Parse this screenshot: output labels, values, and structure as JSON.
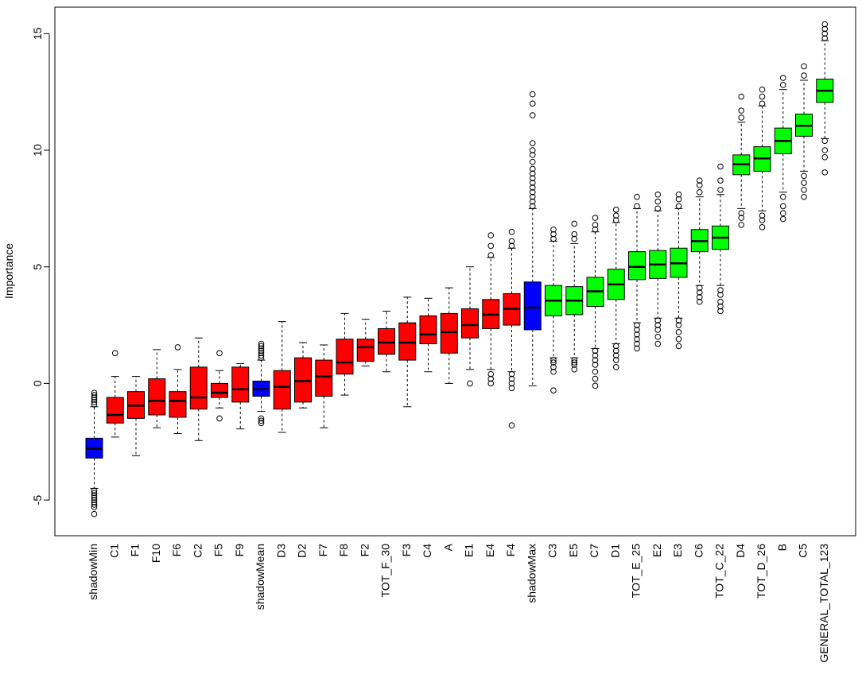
{
  "chart_data": {
    "type": "boxplot",
    "title": "",
    "xlabel": "",
    "ylabel": "Importance",
    "ylim": [
      -6.3,
      15.8
    ],
    "yticks": [
      -5,
      0,
      5,
      10,
      15
    ],
    "ytick_labels": [
      "-5",
      "0",
      "5",
      "10",
      "15"
    ],
    "grid": false,
    "legend": "none",
    "colors": {
      "shadow": "#0000FF",
      "rejected": "#FF0000",
      "confirmed": "#00FF00"
    },
    "categories": [
      "shadowMin",
      "C1",
      "F1",
      "F10",
      "F6",
      "C2",
      "F5",
      "F9",
      "shadowMean",
      "D3",
      "D2",
      "F7",
      "F8",
      "F2",
      "TOT_F_30",
      "F3",
      "C4",
      "A",
      "E1",
      "E4",
      "F4",
      "shadowMax",
      "C3",
      "E5",
      "C7",
      "D1",
      "TOT_E_25",
      "E2",
      "E3",
      "C6",
      "TOT_C_22",
      "D4",
      "TOT_D_26",
      "B",
      "C5",
      "GENERAL_TOTAL_123"
    ],
    "x_labels_shown": [
      "shadowMin",
      "C1",
      "F1",
      "F10",
      "F6",
      "C2",
      "F5",
      "F9",
      "shadowMean",
      "D3",
      "D2",
      "F7",
      "F8",
      "F2",
      "TOT_F_30",
      "F3",
      "C4",
      "A",
      "E1",
      "E4",
      "F4",
      "shadowMax",
      "C3",
      "E5",
      "C7",
      "D1",
      "TOT_E_25",
      "E2",
      "E3",
      "C6",
      "TOT_C_22",
      "D4",
      "TOT_D_26",
      "B",
      "C5",
      "GENERAL_TOTAL_123"
    ],
    "groups": [
      "shadow",
      "rejected",
      "rejected",
      "rejected",
      "rejected",
      "rejected",
      "rejected",
      "rejected",
      "shadow",
      "rejected",
      "rejected",
      "rejected",
      "rejected",
      "rejected",
      "rejected",
      "rejected",
      "rejected",
      "rejected",
      "rejected",
      "rejected",
      "rejected",
      "shadow",
      "confirmed",
      "confirmed",
      "confirmed",
      "confirmed",
      "confirmed",
      "confirmed",
      "confirmed",
      "confirmed",
      "confirmed",
      "confirmed",
      "confirmed",
      "confirmed",
      "confirmed",
      "confirmed"
    ],
    "boxes": [
      {
        "name": "shadowMin",
        "q1": -3.2,
        "median": -2.8,
        "q3": -2.35,
        "whisker_low": -4.5,
        "whisker_high": -1.0,
        "outliers": [
          -0.4,
          -0.5,
          -0.6,
          -0.7,
          -0.8,
          -0.9,
          -4.6,
          -4.7,
          -4.8,
          -4.9,
          -5.0,
          -5.1,
          -5.2,
          -5.3,
          -5.6
        ]
      },
      {
        "name": "C1",
        "q1": -1.7,
        "median": -1.35,
        "q3": -0.6,
        "whisker_low": -2.3,
        "whisker_high": 0.3,
        "outliers": [
          1.3
        ]
      },
      {
        "name": "F1",
        "q1": -1.5,
        "median": -0.95,
        "q3": -0.35,
        "whisker_low": -3.1,
        "whisker_high": 0.3,
        "outliers": []
      },
      {
        "name": "F10",
        "q1": -1.35,
        "median": -0.75,
        "q3": 0.2,
        "whisker_low": -1.9,
        "whisker_high": 1.45,
        "outliers": []
      },
      {
        "name": "F6",
        "q1": -1.45,
        "median": -0.75,
        "q3": -0.35,
        "whisker_low": -2.15,
        "whisker_high": 0.6,
        "outliers": [
          1.55
        ]
      },
      {
        "name": "C2",
        "q1": -1.1,
        "median": -0.6,
        "q3": 0.7,
        "whisker_low": -2.45,
        "whisker_high": 1.95,
        "outliers": []
      },
      {
        "name": "F5",
        "q1": -0.6,
        "median": -0.4,
        "q3": 0.0,
        "whisker_low": -1.05,
        "whisker_high": 0.55,
        "outliers": [
          1.3,
          -1.5
        ]
      },
      {
        "name": "F9",
        "q1": -0.8,
        "median": -0.25,
        "q3": 0.7,
        "whisker_low": -1.95,
        "whisker_high": 0.85,
        "outliers": []
      },
      {
        "name": "shadowMean",
        "q1": -0.55,
        "median": -0.25,
        "q3": 0.1,
        "whisker_low": -1.2,
        "whisker_high": 1.0,
        "outliers": [
          1.1,
          1.2,
          1.3,
          1.4,
          1.5,
          1.6,
          1.7,
          -1.5,
          -1.6,
          -1.7
        ]
      },
      {
        "name": "D3",
        "q1": -1.1,
        "median": -0.15,
        "q3": 0.55,
        "whisker_low": -2.1,
        "whisker_high": 2.65,
        "outliers": []
      },
      {
        "name": "D2",
        "q1": -0.8,
        "median": 0.1,
        "q3": 1.1,
        "whisker_low": -1.05,
        "whisker_high": 1.75,
        "outliers": []
      },
      {
        "name": "F7",
        "q1": -0.55,
        "median": 0.3,
        "q3": 1.0,
        "whisker_low": -1.9,
        "whisker_high": 1.65,
        "outliers": []
      },
      {
        "name": "F8",
        "q1": 0.4,
        "median": 0.9,
        "q3": 1.9,
        "whisker_low": -0.5,
        "whisker_high": 3.0,
        "outliers": []
      },
      {
        "name": "F2",
        "q1": 0.95,
        "median": 1.55,
        "q3": 1.9,
        "whisker_low": 0.75,
        "whisker_high": 2.75,
        "outliers": []
      },
      {
        "name": "TOT_F_30",
        "q1": 1.25,
        "median": 1.75,
        "q3": 2.35,
        "whisker_low": 0.5,
        "whisker_high": 3.1,
        "outliers": []
      },
      {
        "name": "F3",
        "q1": 1.0,
        "median": 1.75,
        "q3": 2.6,
        "whisker_low": -1.0,
        "whisker_high": 3.7,
        "outliers": []
      },
      {
        "name": "C4",
        "q1": 1.7,
        "median": 2.1,
        "q3": 2.9,
        "whisker_low": 0.5,
        "whisker_high": 3.65,
        "outliers": []
      },
      {
        "name": "A",
        "q1": 1.3,
        "median": 2.2,
        "q3": 3.0,
        "whisker_low": 0.0,
        "whisker_high": 4.1,
        "outliers": []
      },
      {
        "name": "E1",
        "q1": 1.95,
        "median": 2.5,
        "q3": 3.2,
        "whisker_low": 0.6,
        "whisker_high": 5.0,
        "outliers": [
          0.0
        ]
      },
      {
        "name": "E4",
        "q1": 2.35,
        "median": 2.95,
        "q3": 3.6,
        "whisker_low": 0.6,
        "whisker_high": 5.4,
        "outliers": [
          0.0,
          0.2,
          0.4,
          5.5,
          5.9,
          6.35
        ]
      },
      {
        "name": "F4",
        "q1": 2.5,
        "median": 3.2,
        "q3": 3.85,
        "whisker_low": 0.5,
        "whisker_high": 5.8,
        "outliers": [
          0.4,
          0.2,
          0.0,
          -0.2,
          -1.8,
          5.9,
          6.1,
          6.5
        ]
      },
      {
        "name": "shadowMax",
        "q1": 2.3,
        "median": 3.25,
        "q3": 4.35,
        "whisker_low": -0.1,
        "whisker_high": 7.5,
        "outliers": [
          7.6,
          7.8,
          8.0,
          8.2,
          8.4,
          8.6,
          8.8,
          9.0,
          9.2,
          9.5,
          9.8,
          10.0,
          10.3,
          11.5,
          12.0,
          12.4
        ]
      },
      {
        "name": "C3",
        "q1": 2.9,
        "median": 3.55,
        "q3": 4.2,
        "whisker_low": 1.1,
        "whisker_high": 6.1,
        "outliers": [
          1.0,
          0.9,
          0.7,
          0.5,
          -0.3,
          6.2,
          6.4,
          6.6
        ]
      },
      {
        "name": "E5",
        "q1": 2.95,
        "median": 3.55,
        "q3": 4.15,
        "whisker_low": 1.1,
        "whisker_high": 6.0,
        "outliers": [
          1.0,
          0.9,
          0.8,
          0.6,
          6.2,
          6.4,
          6.85
        ]
      },
      {
        "name": "C7",
        "q1": 3.3,
        "median": 3.95,
        "q3": 4.55,
        "whisker_low": 1.5,
        "whisker_high": 6.5,
        "outliers": [
          1.4,
          1.2,
          1.0,
          0.8,
          0.5,
          0.2,
          -0.1,
          6.6,
          6.8,
          7.1
        ]
      },
      {
        "name": "D1",
        "q1": 3.6,
        "median": 4.25,
        "q3": 4.9,
        "whisker_low": 1.7,
        "whisker_high": 6.9,
        "outliers": [
          1.6,
          1.4,
          1.2,
          1.0,
          0.7,
          7.0,
          7.2,
          7.45
        ]
      },
      {
        "name": "TOT_E_25",
        "q1": 4.45,
        "median": 5.0,
        "q3": 5.65,
        "whisker_low": 2.6,
        "whisker_high": 7.5,
        "outliers": [
          2.5,
          2.3,
          2.1,
          1.9,
          1.7,
          1.5,
          7.6,
          8.0
        ]
      },
      {
        "name": "E2",
        "q1": 4.5,
        "median": 5.1,
        "q3": 5.7,
        "whisker_low": 2.8,
        "whisker_high": 7.4,
        "outliers": [
          2.7,
          2.5,
          2.3,
          2.0,
          1.7,
          7.5,
          7.8,
          8.1
        ]
      },
      {
        "name": "E3",
        "q1": 4.55,
        "median": 5.15,
        "q3": 5.8,
        "whisker_low": 2.8,
        "whisker_high": 7.5,
        "outliers": [
          2.7,
          2.5,
          2.2,
          1.9,
          1.6,
          7.6,
          7.9,
          8.1
        ]
      },
      {
        "name": "C6",
        "q1": 5.65,
        "median": 6.1,
        "q3": 6.6,
        "whisker_low": 4.2,
        "whisker_high": 8.0,
        "outliers": [
          4.1,
          3.9,
          3.7,
          3.5,
          8.2,
          8.5,
          8.7
        ]
      },
      {
        "name": "TOT_C_22",
        "q1": 5.75,
        "median": 6.25,
        "q3": 6.75,
        "whisker_low": 4.2,
        "whisker_high": 8.1,
        "outliers": [
          4.0,
          3.8,
          3.5,
          3.3,
          3.1,
          8.3,
          8.7,
          9.3
        ]
      },
      {
        "name": "D4",
        "q1": 8.95,
        "median": 9.4,
        "q3": 9.8,
        "whisker_low": 7.5,
        "whisker_high": 11.2,
        "outliers": [
          7.3,
          7.1,
          6.8,
          11.4,
          11.7,
          12.3
        ]
      },
      {
        "name": "TOT_D_26",
        "q1": 9.1,
        "median": 9.65,
        "q3": 10.15,
        "whisker_low": 7.4,
        "whisker_high": 11.9,
        "outliers": [
          7.2,
          7.0,
          6.7,
          12.0,
          12.3,
          12.6
        ]
      },
      {
        "name": "B",
        "q1": 9.85,
        "median": 10.4,
        "q3": 10.95,
        "whisker_low": 8.2,
        "whisker_high": 12.6,
        "outliers": [
          8.0,
          7.6,
          7.3,
          7.05,
          12.8,
          13.1
        ]
      },
      {
        "name": "C5",
        "q1": 10.6,
        "median": 11.05,
        "q3": 11.55,
        "whisker_low": 9.1,
        "whisker_high": 13.0,
        "outliers": [
          8.9,
          8.6,
          8.3,
          8.0,
          13.2,
          13.6
        ]
      },
      {
        "name": "GENERAL_TOTAL_123",
        "q1": 12.05,
        "median": 12.55,
        "q3": 13.05,
        "whisker_low": 10.5,
        "whisker_high": 14.7,
        "outliers": [
          10.4,
          10.0,
          9.7,
          9.05,
          14.8,
          15.0,
          15.2,
          15.4
        ]
      }
    ]
  }
}
